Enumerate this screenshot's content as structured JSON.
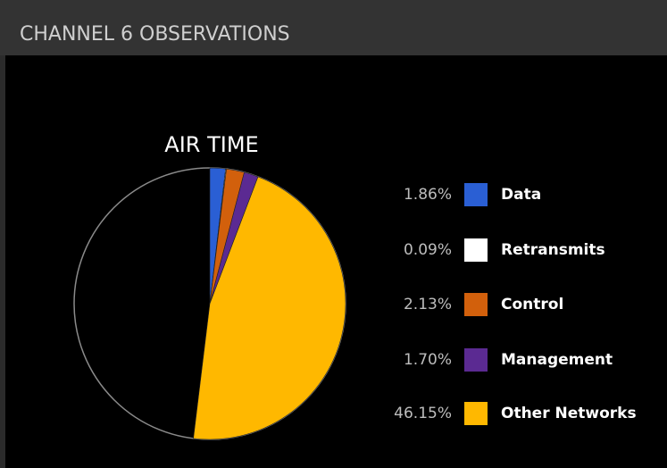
{
  "chart_data": {
    "type": "pie",
    "header": "CHANNEL 6 OBSERVATIONS",
    "title": "AIR TIME",
    "categories": [
      "Data",
      "Retransmits",
      "Control",
      "Management",
      "Other Networks"
    ],
    "values": [
      1.86,
      0.09,
      2.13,
      1.7,
      46.15
    ],
    "value_labels": [
      "1.86%",
      "0.09%",
      "2.13%",
      "1.70%",
      "46.15%"
    ],
    "colors": [
      "#2a5fd4",
      "#ffffff",
      "#d2600c",
      "#5b2a92",
      "#ffb800"
    ]
  }
}
